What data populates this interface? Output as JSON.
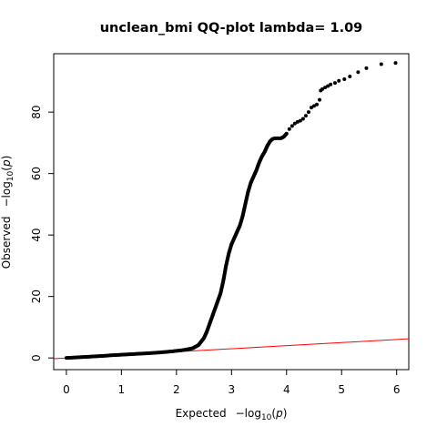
{
  "chart_data": {
    "type": "scatter",
    "title": "unclean_bmi QQ-plot lambda= 1.09",
    "xlabel": {
      "prefix": "Expected",
      "minus": "−",
      "log": "log",
      "sub": "10",
      "open": "(",
      "var": "p",
      "close": ")"
    },
    "ylabel": {
      "prefix": "Observed",
      "minus": "−",
      "log": "log",
      "sub": "10",
      "open": "(",
      "var": "p",
      "close": ")"
    },
    "xlim": [
      -0.23,
      6.22
    ],
    "ylim": [
      -3.8,
      99.0
    ],
    "xticks": [
      0,
      1,
      2,
      3,
      4,
      5,
      6
    ],
    "xtick_labels": [
      "0",
      "1",
      "2",
      "3",
      "4",
      "5",
      "6"
    ],
    "yticks": [
      0,
      20,
      40,
      60,
      80
    ],
    "ytick_labels": [
      "0",
      "20",
      "40",
      "60",
      "80"
    ],
    "point_color": "#000000",
    "line_color": "#ff0000",
    "reference_line": {
      "x": [
        -0.23,
        6.22
      ],
      "y": [
        -0.23,
        6.22
      ]
    },
    "points": [
      [
        0.0,
        0.0
      ],
      [
        0.1,
        0.1
      ],
      [
        0.2,
        0.2
      ],
      [
        0.3,
        0.3
      ],
      [
        0.4,
        0.4
      ],
      [
        0.5,
        0.5
      ],
      [
        0.6,
        0.6
      ],
      [
        0.7,
        0.7
      ],
      [
        0.8,
        0.85
      ],
      [
        0.9,
        0.95
      ],
      [
        1.0,
        1.05
      ],
      [
        1.1,
        1.15
      ],
      [
        1.2,
        1.25
      ],
      [
        1.3,
        1.35
      ],
      [
        1.4,
        1.45
      ],
      [
        1.5,
        1.55
      ],
      [
        1.6,
        1.65
      ],
      [
        1.7,
        1.8
      ],
      [
        1.8,
        1.95
      ],
      [
        1.9,
        2.1
      ],
      [
        2.0,
        2.3
      ],
      [
        2.1,
        2.5
      ],
      [
        2.2,
        2.8
      ],
      [
        2.3,
        3.2
      ],
      [
        2.4,
        4.2
      ],
      [
        2.5,
        6.5
      ],
      [
        2.55,
        8.5
      ],
      [
        2.6,
        11
      ],
      [
        2.65,
        13.5
      ],
      [
        2.7,
        16
      ],
      [
        2.75,
        18.5
      ],
      [
        2.8,
        21
      ],
      [
        2.85,
        25
      ],
      [
        2.9,
        30
      ],
      [
        2.95,
        34
      ],
      [
        3.0,
        37
      ],
      [
        3.05,
        39
      ],
      [
        3.1,
        41
      ],
      [
        3.15,
        43
      ],
      [
        3.2,
        46
      ],
      [
        3.25,
        50
      ],
      [
        3.3,
        54
      ],
      [
        3.35,
        57
      ],
      [
        3.4,
        59
      ],
      [
        3.45,
        61
      ],
      [
        3.5,
        63.5
      ],
      [
        3.55,
        65.5
      ],
      [
        3.6,
        67
      ],
      [
        3.65,
        69
      ],
      [
        3.7,
        70.5
      ],
      [
        3.75,
        71.3
      ],
      [
        3.8,
        71.5
      ],
      [
        3.85,
        71.5
      ],
      [
        3.9,
        71.5
      ],
      [
        3.95,
        72
      ],
      [
        4.0,
        73
      ],
      [
        4.05,
        74.5
      ],
      [
        4.1,
        75.5
      ],
      [
        4.15,
        76.3
      ],
      [
        4.2,
        76.8
      ],
      [
        4.25,
        77.2
      ],
      [
        4.3,
        77.8
      ],
      [
        4.35,
        78.8
      ],
      [
        4.4,
        80
      ],
      [
        4.45,
        81.5
      ],
      [
        4.5,
        82
      ],
      [
        4.55,
        82.5
      ],
      [
        4.6,
        84
      ],
      [
        4.62,
        87
      ],
      [
        4.65,
        87.5
      ],
      [
        4.7,
        88
      ],
      [
        4.75,
        88.5
      ],
      [
        4.8,
        89
      ],
      [
        4.88,
        89.5
      ],
      [
        4.95,
        90.2
      ],
      [
        5.05,
        90.7
      ],
      [
        5.15,
        91.6
      ],
      [
        5.3,
        93
      ],
      [
        5.45,
        94.3
      ],
      [
        5.72,
        95.6
      ],
      [
        5.98,
        96
      ]
    ]
  }
}
